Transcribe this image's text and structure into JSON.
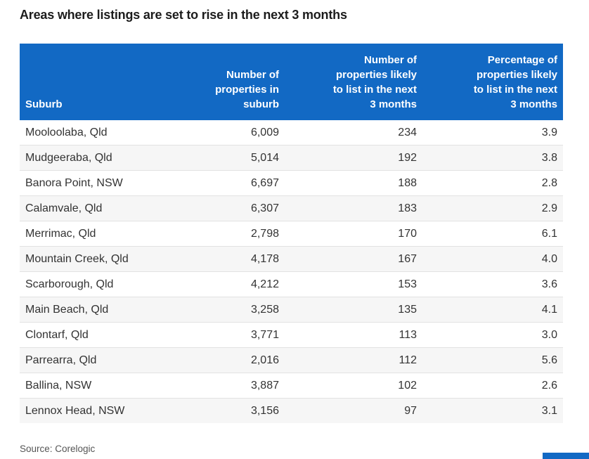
{
  "title": "Areas where listings are set to rise in the next 3 months",
  "source": "Source: Corelogic",
  "colors": {
    "header_blue": "#1269c4",
    "row_alt_background": "#f6f6f6",
    "row_divider": "#e2e2e2",
    "body_text": "#333333",
    "title_text": "#1c1c1c",
    "source_text": "#555555"
  },
  "table": {
    "headers_display": [
      "Suburb",
      "Number of\nproperties in\nsuburb",
      "Number of\nproperties likely\nto list in the next\n3 months",
      "Percentage of\nproperties likely\nto list in the next\n3 months"
    ]
  },
  "chart_data": {
    "type": "table",
    "title": "Areas where listings are set to rise in the next 3 months",
    "columns": [
      "Suburb",
      "Number of properties in suburb",
      "Number of properties likely to list in the next 3 months",
      "Percentage of properties likely to list in the next 3 months"
    ],
    "rows": [
      [
        "Mooloolaba, Qld",
        "6,009",
        "234",
        "3.9"
      ],
      [
        "Mudgeeraba, Qld",
        "5,014",
        "192",
        "3.8"
      ],
      [
        "Banora Point, NSW",
        "6,697",
        "188",
        "2.8"
      ],
      [
        "Calamvale, Qld",
        "6,307",
        "183",
        "2.9"
      ],
      [
        "Merrimac, Qld",
        "2,798",
        "170",
        "6.1"
      ],
      [
        "Mountain Creek, Qld",
        "4,178",
        "167",
        "4.0"
      ],
      [
        "Scarborough, Qld",
        "4,212",
        "153",
        "3.6"
      ],
      [
        "Main Beach, Qld",
        "3,258",
        "135",
        "4.1"
      ],
      [
        "Clontarf, Qld",
        "3,771",
        "113",
        "3.0"
      ],
      [
        "Parrearra, Qld",
        "2,016",
        "112",
        "5.6"
      ],
      [
        "Ballina, NSW",
        "3,887",
        "102",
        "2.6"
      ],
      [
        "Lennox Head, NSW",
        "3,156",
        "97",
        "3.1"
      ]
    ],
    "source": "Source: Corelogic"
  }
}
